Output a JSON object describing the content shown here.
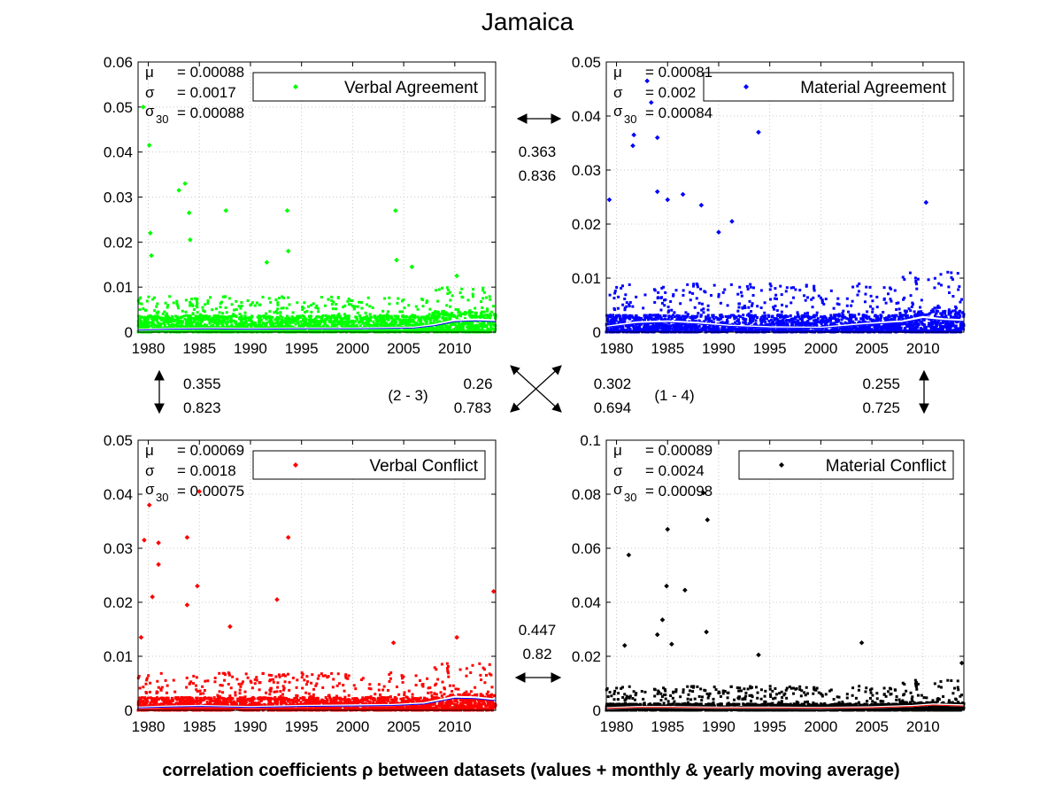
{
  "title": "Jamaica",
  "footer": "correlation coefficients ρ between datasets (values + monthly & yearly moving average)",
  "correlations": {
    "top": {
      "value": "0.363",
      "smoothed": "0.836"
    },
    "left": {
      "value": "0.355",
      "smoothed": "0.823"
    },
    "right": {
      "value": "0.255",
      "smoothed": "0.725"
    },
    "bottom": {
      "value": "0.447",
      "smoothed": "0.82"
    },
    "diag_2_3": {
      "label": "(2 - 3)",
      "value": "0.26",
      "smoothed": "0.783"
    },
    "diag_1_4": {
      "label": "(1 - 4)",
      "value": "0.302",
      "smoothed": "0.694"
    }
  },
  "chart_data": [
    {
      "id": "verbal-agreement",
      "type": "scatter",
      "legend": "Verbal Agreement",
      "color": "#00ff00",
      "legend_position": "top-right",
      "xlim": [
        1979,
        2014
      ],
      "ylim": [
        0,
        0.06
      ],
      "xticks": [
        "1980",
        "1985",
        "1990",
        "1995",
        "2000",
        "2005",
        "2010"
      ],
      "yticks": [
        "0",
        "0.01",
        "0.02",
        "0.03",
        "0.04",
        "0.05",
        "0.06"
      ],
      "grid": true,
      "stats": {
        "mu": "= 0.00088",
        "sigma": "= 0.0017",
        "sigma30": "= 0.00088"
      },
      "baseline": 0.0023,
      "scatter_max": 0.008,
      "outliers": [
        [
          1979.5,
          0.05
        ],
        [
          1980.1,
          0.0415
        ],
        [
          1980.2,
          0.022
        ],
        [
          1980.3,
          0.017
        ],
        [
          1983.0,
          0.0315
        ],
        [
          1983.6,
          0.033
        ],
        [
          1984.0,
          0.0265
        ],
        [
          1984.1,
          0.0205
        ],
        [
          1987.6,
          0.027
        ],
        [
          1991.6,
          0.0155
        ],
        [
          1993.6,
          0.027
        ],
        [
          1993.7,
          0.018
        ],
        [
          2004.2,
          0.027
        ],
        [
          2004.3,
          0.016
        ],
        [
          2005.8,
          0.0145
        ],
        [
          2010.2,
          0.0125
        ]
      ],
      "series": [
        {
          "name": "",
          "points": [
            [
              1979.0,
              0.0005
            ],
            [
              1982.0,
              0.0007
            ],
            [
              1986.0,
              0.0008
            ],
            [
              1990.0,
              0.0007
            ],
            [
              1995.0,
              0.0008
            ],
            [
              2000.0,
              0.0008
            ],
            [
              2003.0,
              0.0009
            ],
            [
              2006.0,
              0.001
            ],
            [
              2008.0,
              0.0016
            ],
            [
              2010.0,
              0.0026
            ],
            [
              2012.0,
              0.0028
            ],
            [
              2014.0,
              0.0026
            ]
          ]
        }
      ]
    },
    {
      "id": "material-agreement",
      "type": "scatter",
      "legend": "Material Agreement",
      "color": "#0000ff",
      "legend_position": "top-right",
      "xlim": [
        1979,
        2014
      ],
      "ylim": [
        0,
        0.05
      ],
      "xticks": [
        "1980",
        "1985",
        "1990",
        "1995",
        "2000",
        "2005",
        "2010"
      ],
      "yticks": [
        "0",
        "0.01",
        "0.02",
        "0.03",
        "0.04",
        "0.05"
      ],
      "grid": true,
      "stats": {
        "mu": "= 0.00081",
        "sigma": "= 0.002",
        "sigma30": "= 0.00084"
      },
      "baseline": 0.002,
      "scatter_max": 0.009,
      "outliers": [
        [
          1979.3,
          0.0245
        ],
        [
          1981.6,
          0.0345
        ],
        [
          1981.7,
          0.0365
        ],
        [
          1983.0,
          0.0465
        ],
        [
          1983.4,
          0.0425
        ],
        [
          1984.0,
          0.036
        ],
        [
          1984.0,
          0.026
        ],
        [
          1985.0,
          0.0245
        ],
        [
          1986.5,
          0.0255
        ],
        [
          1990.0,
          0.0185
        ],
        [
          1991.3,
          0.0205
        ],
        [
          1993.9,
          0.037
        ],
        [
          2010.3,
          0.024
        ],
        [
          1988.3,
          0.0235
        ]
      ],
      "series": [
        {
          "name": "",
          "points": [
            [
              1979.0,
              0.001
            ],
            [
              1982.0,
              0.0018
            ],
            [
              1985.0,
              0.002
            ],
            [
              1988.0,
              0.0017
            ],
            [
              1991.0,
              0.0012
            ],
            [
              1995.0,
              0.0009
            ],
            [
              2000.0,
              0.0008
            ],
            [
              2004.0,
              0.0015
            ],
            [
              2008.0,
              0.002
            ],
            [
              2010.0,
              0.0028
            ],
            [
              2012.0,
              0.0024
            ],
            [
              2014.0,
              0.0022
            ]
          ]
        }
      ]
    },
    {
      "id": "verbal-conflict",
      "type": "scatter",
      "legend": "Verbal Conflict",
      "color": "#ff0000",
      "legend_position": "top-right",
      "xlim": [
        1979,
        2014
      ],
      "ylim": [
        0,
        0.05
      ],
      "xticks": [
        "1980",
        "1985",
        "1990",
        "1995",
        "2000",
        "2005",
        "2010"
      ],
      "yticks": [
        "0",
        "0.01",
        "0.02",
        "0.03",
        "0.04",
        "0.05"
      ],
      "grid": true,
      "stats": {
        "mu": "= 0.00069",
        "sigma": "= 0.0018",
        "sigma30": "= 0.00075"
      },
      "baseline": 0.0015,
      "scatter_max": 0.007,
      "outliers": [
        [
          1980.1,
          0.038
        ],
        [
          1979.6,
          0.0315
        ],
        [
          1981.0,
          0.031
        ],
        [
          1981.0,
          0.027
        ],
        [
          1983.8,
          0.032
        ],
        [
          1985.0,
          0.0405
        ],
        [
          1984.8,
          0.023
        ],
        [
          1983.8,
          0.0195
        ],
        [
          1988.0,
          0.0155
        ],
        [
          1992.6,
          0.0205
        ],
        [
          1993.7,
          0.032
        ],
        [
          2004.0,
          0.0125
        ],
        [
          2010.2,
          0.0135
        ],
        [
          2013.8,
          0.022
        ],
        [
          1979.3,
          0.0135
        ],
        [
          1980.4,
          0.021
        ]
      ],
      "series": [
        {
          "name": "",
          "points": [
            [
              1979.0,
              0.0005
            ],
            [
              1982.0,
              0.0007
            ],
            [
              1985.0,
              0.0008
            ],
            [
              1990.0,
              0.0006
            ],
            [
              1995.0,
              0.0008
            ],
            [
              2000.0,
              0.0009
            ],
            [
              2004.0,
              0.001
            ],
            [
              2007.0,
              0.0013
            ],
            [
              2010.0,
              0.0025
            ],
            [
              2012.0,
              0.0024
            ],
            [
              2014.0,
              0.002
            ]
          ]
        }
      ]
    },
    {
      "id": "material-conflict",
      "type": "scatter",
      "legend": "Material Conflict",
      "color": "#000000",
      "legend_position": "top-right",
      "xlim": [
        1979,
        2014
      ],
      "ylim": [
        0,
        0.1
      ],
      "xticks": [
        "1980",
        "1985",
        "1990",
        "1995",
        "2000",
        "2005",
        "2010"
      ],
      "yticks": [
        "0",
        "0.02",
        "0.04",
        "0.06",
        "0.08",
        "0.1"
      ],
      "grid": true,
      "stats": {
        "mu": "= 0.00089",
        "sigma": "= 0.0024",
        "sigma30": "= 0.00098"
      },
      "baseline": 0.0015,
      "scatter_max": 0.009,
      "outliers": [
        [
          1981.2,
          0.0575
        ],
        [
          1985.0,
          0.067
        ],
        [
          1984.9,
          0.046
        ],
        [
          1986.7,
          0.0445
        ],
        [
          1988.9,
          0.0705
        ],
        [
          1988.5,
          0.0805
        ],
        [
          1988.8,
          0.029
        ],
        [
          1984.5,
          0.0335
        ],
        [
          1984.0,
          0.028
        ],
        [
          1985.4,
          0.0245
        ],
        [
          2004.0,
          0.025
        ],
        [
          2013.8,
          0.0175
        ],
        [
          1980.8,
          0.024
        ],
        [
          1993.9,
          0.0205
        ]
      ],
      "series": [
        {
          "name": "",
          "points": [
            [
              1979.0,
              0.0008
            ],
            [
              1982.0,
              0.0012
            ],
            [
              1985.0,
              0.0012
            ],
            [
              1990.0,
              0.001
            ],
            [
              1995.0,
              0.001
            ],
            [
              2000.0,
              0.0009
            ],
            [
              2005.0,
              0.0011
            ],
            [
              2009.0,
              0.0016
            ],
            [
              2011.0,
              0.0022
            ],
            [
              2014.0,
              0.0018
            ]
          ]
        }
      ]
    }
  ]
}
